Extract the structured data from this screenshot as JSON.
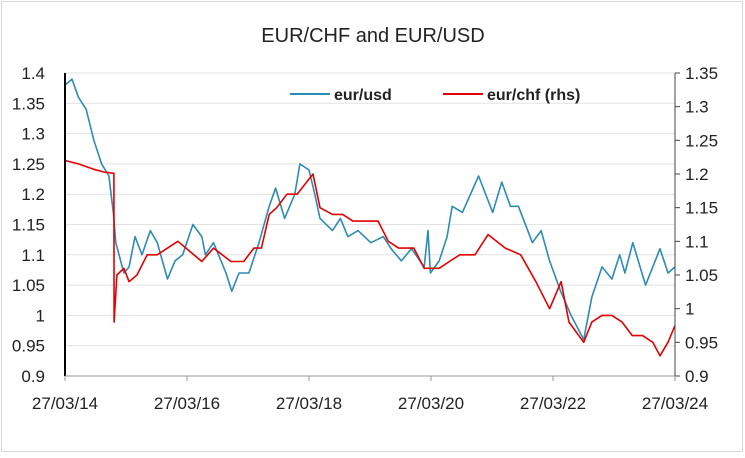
{
  "chart_data": {
    "type": "line",
    "title": "EUR/CHF and EUR/USD",
    "xlabel": "",
    "ylabel": "",
    "x_tick_labels": [
      "27/03/14",
      "27/03/16",
      "27/03/18",
      "27/03/20",
      "27/03/22",
      "27/03/24"
    ],
    "x_range": [
      "2014-03-27",
      "2024-03-27"
    ],
    "y_left": {
      "range": [
        0.9,
        1.4
      ],
      "ticks": [
        "0.9",
        "0.95",
        "1",
        "1.05",
        "1.1",
        "1.15",
        "1.2",
        "1.25",
        "1.3",
        "1.35",
        "1.4"
      ]
    },
    "y_right": {
      "range": [
        0.9,
        1.35
      ],
      "ticks": [
        "0.9",
        "0.95",
        "1",
        "1.05",
        "1.1",
        "1.15",
        "1.2",
        "1.25",
        "1.3",
        "1.35"
      ]
    },
    "grid": "horizontal",
    "legend_position": "top",
    "series": [
      {
        "name": "eur/usd",
        "axis": "left",
        "color": "#2e8bb3",
        "points": [
          [
            "2014-03-27",
            1.38
          ],
          [
            "2014-05-08",
            1.39
          ],
          [
            "2014-06-15",
            1.36
          ],
          [
            "2014-08-01",
            1.34
          ],
          [
            "2014-09-15",
            1.29
          ],
          [
            "2014-11-01",
            1.25
          ],
          [
            "2014-12-15",
            1.23
          ],
          [
            "2015-01-10",
            1.17
          ],
          [
            "2015-01-25",
            1.12
          ],
          [
            "2015-03-15",
            1.07
          ],
          [
            "2015-04-15",
            1.08
          ],
          [
            "2015-05-20",
            1.13
          ],
          [
            "2015-07-01",
            1.1
          ],
          [
            "2015-08-20",
            1.14
          ],
          [
            "2015-10-01",
            1.12
          ],
          [
            "2015-12-01",
            1.06
          ],
          [
            "2016-01-15",
            1.09
          ],
          [
            "2016-03-01",
            1.1
          ],
          [
            "2016-05-01",
            1.15
          ],
          [
            "2016-06-23",
            1.13
          ],
          [
            "2016-07-15",
            1.1
          ],
          [
            "2016-09-01",
            1.12
          ],
          [
            "2016-11-15",
            1.07
          ],
          [
            "2016-12-20",
            1.04
          ],
          [
            "2017-02-01",
            1.07
          ],
          [
            "2017-04-01",
            1.07
          ],
          [
            "2017-06-01",
            1.12
          ],
          [
            "2017-08-01",
            1.18
          ],
          [
            "2017-09-08",
            1.21
          ],
          [
            "2017-11-01",
            1.16
          ],
          [
            "2018-01-01",
            1.2
          ],
          [
            "2018-02-01",
            1.25
          ],
          [
            "2018-03-27",
            1.24
          ],
          [
            "2018-05-01",
            1.2
          ],
          [
            "2018-06-01",
            1.16
          ],
          [
            "2018-08-15",
            1.14
          ],
          [
            "2018-10-01",
            1.16
          ],
          [
            "2018-11-15",
            1.13
          ],
          [
            "2019-01-15",
            1.14
          ],
          [
            "2019-04-01",
            1.12
          ],
          [
            "2019-06-15",
            1.13
          ],
          [
            "2019-08-01",
            1.11
          ],
          [
            "2019-10-01",
            1.09
          ],
          [
            "2019-12-01",
            1.11
          ],
          [
            "2020-02-15",
            1.08
          ],
          [
            "2020-03-09",
            1.14
          ],
          [
            "2020-03-23",
            1.07
          ],
          [
            "2020-05-15",
            1.09
          ],
          [
            "2020-07-01",
            1.13
          ],
          [
            "2020-08-01",
            1.18
          ],
          [
            "2020-10-01",
            1.17
          ],
          [
            "2021-01-06",
            1.23
          ],
          [
            "2021-03-31",
            1.17
          ],
          [
            "2021-05-25",
            1.22
          ],
          [
            "2021-07-15",
            1.18
          ],
          [
            "2021-09-01",
            1.18
          ],
          [
            "2021-11-24",
            1.12
          ],
          [
            "2022-01-15",
            1.14
          ],
          [
            "2022-03-07",
            1.09
          ],
          [
            "2022-05-12",
            1.04
          ],
          [
            "2022-07-14",
            1.0
          ],
          [
            "2022-09-27",
            0.96
          ],
          [
            "2022-11-15",
            1.03
          ],
          [
            "2023-01-15",
            1.08
          ],
          [
            "2023-03-15",
            1.06
          ],
          [
            "2023-05-01",
            1.1
          ],
          [
            "2023-06-01",
            1.07
          ],
          [
            "2023-07-18",
            1.12
          ],
          [
            "2023-10-03",
            1.05
          ],
          [
            "2023-12-28",
            1.11
          ],
          [
            "2024-02-14",
            1.07
          ],
          [
            "2024-03-27",
            1.08
          ]
        ]
      },
      {
        "name": "eur/chf (rhs)",
        "axis": "right",
        "color": "#e30000",
        "points": [
          [
            "2014-03-27",
            1.22
          ],
          [
            "2014-06-15",
            1.215
          ],
          [
            "2014-09-15",
            1.207
          ],
          [
            "2014-11-15",
            1.203
          ],
          [
            "2015-01-14",
            1.201
          ],
          [
            "2015-01-15",
            0.98
          ],
          [
            "2015-02-01",
            1.05
          ],
          [
            "2015-03-15",
            1.06
          ],
          [
            "2015-04-15",
            1.04
          ],
          [
            "2015-06-01",
            1.05
          ],
          [
            "2015-08-01",
            1.08
          ],
          [
            "2015-10-01",
            1.08
          ],
          [
            "2015-12-01",
            1.09
          ],
          [
            "2016-02-01",
            1.1
          ],
          [
            "2016-06-23",
            1.07
          ],
          [
            "2016-09-01",
            1.09
          ],
          [
            "2016-12-15",
            1.07
          ],
          [
            "2017-03-01",
            1.07
          ],
          [
            "2017-05-01",
            1.09
          ],
          [
            "2017-06-15",
            1.09
          ],
          [
            "2017-08-01",
            1.14
          ],
          [
            "2017-09-15",
            1.15
          ],
          [
            "2017-11-15",
            1.17
          ],
          [
            "2018-01-15",
            1.17
          ],
          [
            "2018-04-20",
            1.2
          ],
          [
            "2018-06-01",
            1.15
          ],
          [
            "2018-08-15",
            1.14
          ],
          [
            "2018-10-15",
            1.14
          ],
          [
            "2018-12-15",
            1.13
          ],
          [
            "2019-03-01",
            1.13
          ],
          [
            "2019-05-15",
            1.13
          ],
          [
            "2019-07-15",
            1.1
          ],
          [
            "2019-09-15",
            1.09
          ],
          [
            "2019-12-15",
            1.09
          ],
          [
            "2020-02-15",
            1.06
          ],
          [
            "2020-05-15",
            1.06
          ],
          [
            "2020-07-15",
            1.07
          ],
          [
            "2020-09-15",
            1.08
          ],
          [
            "2020-12-15",
            1.08
          ],
          [
            "2021-03-04",
            1.11
          ],
          [
            "2021-06-15",
            1.09
          ],
          [
            "2021-09-15",
            1.08
          ],
          [
            "2021-12-15",
            1.04
          ],
          [
            "2022-03-07",
            1.0
          ],
          [
            "2022-05-15",
            1.04
          ],
          [
            "2022-07-01",
            0.98
          ],
          [
            "2022-09-27",
            0.95
          ],
          [
            "2022-11-15",
            0.98
          ],
          [
            "2023-01-15",
            0.99
          ],
          [
            "2023-03-15",
            0.99
          ],
          [
            "2023-05-15",
            0.98
          ],
          [
            "2023-07-15",
            0.96
          ],
          [
            "2023-09-15",
            0.96
          ],
          [
            "2023-11-15",
            0.95
          ],
          [
            "2023-12-28",
            0.93
          ],
          [
            "2024-02-14",
            0.95
          ],
          [
            "2024-03-27",
            0.975
          ]
        ]
      }
    ]
  }
}
